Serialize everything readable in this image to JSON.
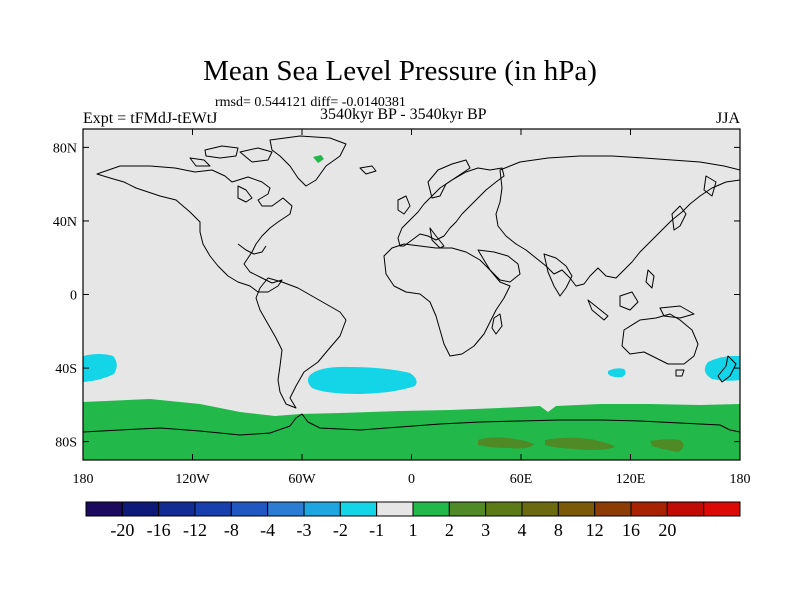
{
  "title": "Mean Sea Level Pressure (in hPa)",
  "subtitle": "rmsd= 0.544121 diff= -0.0140381",
  "left_label": "Expt = tFMdJ-tEWtJ",
  "center_label": "3540kyr BP - 3540kyr BP",
  "right_label": "JJA",
  "lat_labels": [
    "80N",
    "40N",
    "0",
    "40S",
    "80S"
  ],
  "lon_labels": [
    "180",
    "120W",
    "60W",
    "0",
    "60E",
    "120E",
    "180"
  ],
  "colorbar": {
    "colors": [
      "#1b0a5e",
      "#0e1a78",
      "#122c94",
      "#173fae",
      "#2157c0",
      "#2d7cd4",
      "#1ea6e0",
      "#14d4e8",
      "#e6e6e6",
      "#22b84a",
      "#4f8a26",
      "#5c7a16",
      "#6b6a10",
      "#7a5a08",
      "#8c3c04",
      "#a82204",
      "#c00c04",
      "#dc0a06"
    ],
    "labels": [
      "-20",
      "-16",
      "-12",
      "-8",
      "-4",
      "-3",
      "-2",
      "-1",
      "1",
      "2",
      "3",
      "4",
      "8",
      "12",
      "16",
      "20"
    ]
  },
  "chart_data": {
    "type": "heatmap",
    "variable": "Mean Sea Level Pressure difference",
    "units": "hPa",
    "season": "JJA",
    "xlim": [
      -180,
      180
    ],
    "ylim": [
      -90,
      90
    ],
    "background_value_range": [
      -1,
      1
    ],
    "regions": [
      {
        "name": "antarctic-positive-band",
        "lat_range": [
          -90,
          -60
        ],
        "lon_range": [
          -180,
          180
        ],
        "value_range": [
          1,
          2
        ]
      },
      {
        "name": "east-antarctic-positive-patches",
        "lat_range": [
          -82,
          -78
        ],
        "lon_range": [
          40,
          150
        ],
        "value_range": [
          3,
          4
        ]
      },
      {
        "name": "south-atlantic-negative",
        "lat_center": -45,
        "lon_center": -40,
        "value_range": [
          -2,
          -1
        ]
      },
      {
        "name": "south-pacific-negative-west",
        "lat_center": -42,
        "lon_center": -175,
        "value_range": [
          -2,
          -1
        ]
      },
      {
        "name": "south-pacific-negative-east",
        "lat_center": -42,
        "lon_center": 170,
        "value_range": [
          -2,
          -1
        ]
      },
      {
        "name": "south-indian-negative",
        "lat_center": -43,
        "lon_center": 105,
        "value_range": [
          -2,
          -1
        ]
      },
      {
        "name": "greenland-positive",
        "lat_center": 76,
        "lon_center": -35,
        "value_range": [
          1,
          2
        ]
      }
    ]
  }
}
